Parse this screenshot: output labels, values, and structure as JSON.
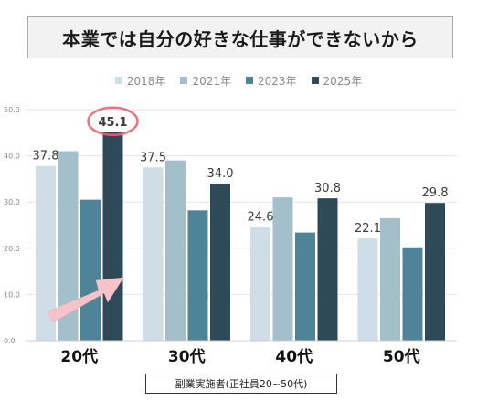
{
  "title": "本業では自分の好きな仕事ができないから",
  "note": "副業実施者(正社員20~50代)",
  "colors": {
    "y2018": "#cfdee6",
    "y2021": "#a2bfca",
    "y2023": "#4e8398",
    "y2025": "#2e4a58",
    "highlight_circle": "#e86470",
    "arrow": "#f6c3cb",
    "grid": "#e4e4e4",
    "tick": "#8a8a8a",
    "value_label": "#3a3a3a"
  },
  "chart_data": {
    "type": "bar",
    "title": "本業では自分の好きな仕事ができないから",
    "categories": [
      "20代",
      "30代",
      "40代",
      "50代"
    ],
    "series": [
      {
        "name": "2018年",
        "values": [
          37.8,
          37.5,
          24.6,
          22.1
        ]
      },
      {
        "name": "2021年",
        "values": [
          41.0,
          39.0,
          31.0,
          26.5
        ]
      },
      {
        "name": "2023年",
        "values": [
          30.5,
          28.2,
          23.4,
          20.2
        ]
      },
      {
        "name": "2025年",
        "values": [
          45.1,
          34.0,
          30.8,
          29.8
        ]
      }
    ],
    "value_labels": {
      "2018年": [
        "37.8",
        "37.5",
        "24.6",
        "22.1"
      ],
      "2025年": [
        "45.1",
        "34.0",
        "30.8",
        "29.8"
      ]
    },
    "y_ticks": [
      "0.0",
      "10.0",
      "20.0",
      "30.0",
      "40.0",
      "50.0"
    ],
    "ylim": [
      0,
      50
    ],
    "grid": true,
    "legend_position": "top",
    "highlight": {
      "series": "2025年",
      "category": "20代",
      "value": 45.1
    }
  }
}
